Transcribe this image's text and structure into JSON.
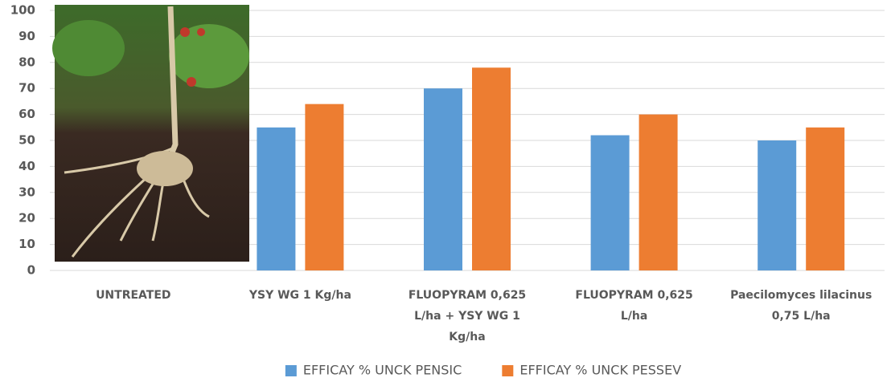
{
  "chart_data": {
    "type": "bar",
    "categories": [
      "UNTREATED",
      "YSY WG 1 Kg/ha",
      "FLUOPYRAM 0,625 L/ha + YSY WG 1 Kg/ha",
      "FLUOPYRAM 0,625 L/ha",
      "Paecilomyces lilacinus 0,75 L/ha"
    ],
    "series": [
      {
        "name": "EFFICAY % UNCK PENSIC",
        "color": "#5b9bd5",
        "values": [
          null,
          55,
          70,
          52,
          50
        ]
      },
      {
        "name": "EFFICAY % UNCK PESSEV",
        "color": "#ed7d31",
        "values": [
          null,
          64,
          78,
          60,
          55
        ]
      }
    ],
    "ylim": [
      0,
      100
    ],
    "yticks": [
      0,
      10,
      20,
      30,
      40,
      50,
      60,
      70,
      80,
      90,
      100
    ],
    "grid": true,
    "legend": "bottom"
  }
}
